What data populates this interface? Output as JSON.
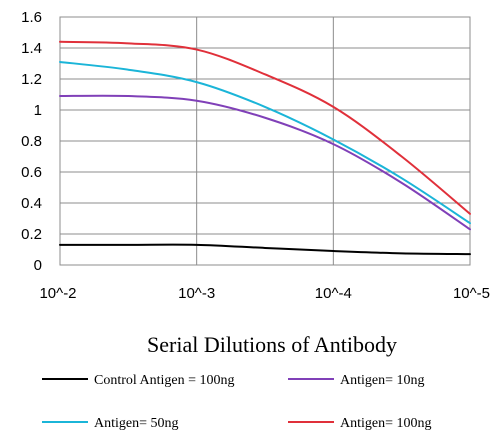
{
  "chart_data": {
    "type": "line",
    "title": "",
    "xlabel": "Serial Dilutions of Antibody",
    "ylabel": "",
    "categories": [
      "10^-2",
      "10^-3",
      "10^-4",
      "10^-5"
    ],
    "ylim": [
      0,
      1.6
    ],
    "yticks": [
      "0",
      "0.2",
      "0.4",
      "0.6",
      "0.8",
      "1",
      "1.2",
      "1.4",
      "1.6"
    ],
    "grid": true,
    "legend_position": "bottom",
    "series": [
      {
        "name": "Control Antigen = 100ng",
        "color": "#000000",
        "x": [
          0,
          0.5,
          1,
          1.5,
          2,
          2.5,
          3
        ],
        "values": [
          0.13,
          0.13,
          0.13,
          0.11,
          0.09,
          0.075,
          0.07
        ]
      },
      {
        "name": "Antigen= 10ng",
        "color": "#8040b8",
        "x": [
          0,
          0.5,
          1,
          1.5,
          2,
          2.5,
          3
        ],
        "values": [
          1.09,
          1.09,
          1.06,
          0.95,
          0.78,
          0.53,
          0.23
        ]
      },
      {
        "name": "Antigen= 50ng",
        "color": "#1bb5d8",
        "x": [
          0,
          0.5,
          1,
          1.5,
          2,
          2.5,
          3
        ],
        "values": [
          1.31,
          1.26,
          1.18,
          1.02,
          0.81,
          0.56,
          0.27
        ]
      },
      {
        "name": "Antigen= 100ng",
        "color": "#e0303a",
        "x": [
          0,
          0.5,
          1,
          1.5,
          2,
          2.5,
          3
        ],
        "values": [
          1.44,
          1.43,
          1.39,
          1.23,
          1.02,
          0.7,
          0.33
        ]
      }
    ]
  }
}
